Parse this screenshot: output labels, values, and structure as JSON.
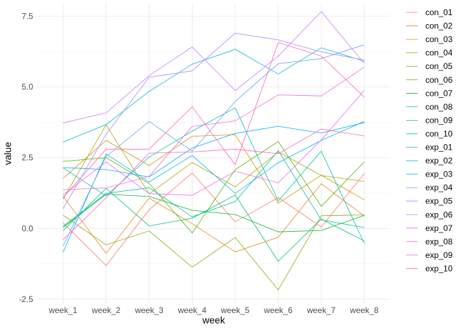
{
  "chart_data": {
    "type": "line",
    "title": "",
    "xlabel": "week",
    "ylabel": "value",
    "categories": [
      "week_1",
      "week_2",
      "week_3",
      "week_4",
      "week_5",
      "week_6",
      "week_7",
      "week_8"
    ],
    "ylim": [
      -2.65,
      7.95
    ],
    "y_ticks": [
      -2.5,
      0.0,
      2.5,
      5.0,
      7.5
    ],
    "y_tick_labels": [
      "-2.5",
      "0.0",
      "2.5",
      "5.0",
      "7.5"
    ],
    "grid": true,
    "legend_position": "right",
    "series": [
      {
        "name": "con_01",
        "color": "#F8766D",
        "values": [
          0.2,
          -1.31,
          0.66,
          1.96,
          0.23,
          1.09,
          0.05,
          1.94
        ]
      },
      {
        "name": "con_02",
        "color": "#E7851E",
        "values": [
          1.13,
          -0.88,
          1.07,
          0.17,
          -0.83,
          -0.31,
          1.58,
          0.44
        ]
      },
      {
        "name": "con_03",
        "color": "#D09400",
        "values": [
          1.77,
          3.11,
          2.22,
          3.26,
          3.31,
          0.89,
          1.88,
          1.01
        ]
      },
      {
        "name": "con_04",
        "color": "#B2A100",
        "values": [
          1.04,
          3.66,
          1.22,
          2.33,
          1.47,
          2.7,
          1.87,
          1.66
        ]
      },
      {
        "name": "con_05",
        "color": "#8BAB00",
        "values": [
          0.47,
          -0.58,
          -0.09,
          -1.37,
          -0.32,
          -2.17,
          0.45,
          0.48
        ]
      },
      {
        "name": "con_06",
        "color": "#55B300",
        "values": [
          2.37,
          2.5,
          1.59,
          -0.16,
          2.08,
          3.07,
          0.78,
          2.35
        ]
      },
      {
        "name": "con_07",
        "color": "#00B81F",
        "values": [
          0.03,
          1.21,
          1.13,
          0.64,
          0.49,
          -0.12,
          -0.07,
          0.46
        ]
      },
      {
        "name": "con_08",
        "color": "#00BE70",
        "values": [
          -0.08,
          1.42,
          0.09,
          0.36,
          1.18,
          -1.16,
          0.33,
          -0.44
        ]
      },
      {
        "name": "con_09",
        "color": "#00C097",
        "values": [
          0.08,
          1.24,
          1.44,
          0.41,
          0.95,
          2.75,
          0.3,
          0.03
        ]
      },
      {
        "name": "con_10",
        "color": "#00BFB4",
        "values": [
          2.14,
          1.15,
          2.52,
          3.44,
          4.26,
          0.97,
          2.73,
          -0.53
        ]
      },
      {
        "name": "exp_01",
        "color": "#00BCD1",
        "values": [
          3.05,
          3.67,
          4.84,
          5.8,
          6.33,
          5.46,
          6.38,
          5.91
        ]
      },
      {
        "name": "exp_02",
        "color": "#00B6EB",
        "values": [
          -0.84,
          2.63,
          1.64,
          2.58,
          1.24,
          2.32,
          3.11,
          3.78
        ]
      },
      {
        "name": "exp_03",
        "color": "#00A9FF",
        "values": [
          2.15,
          2.08,
          1.82,
          2.84,
          3.36,
          3.61,
          3.37,
          3.74
        ]
      },
      {
        "name": "exp_04",
        "color": "#619CFF",
        "values": [
          -0.62,
          2.54,
          3.78,
          2.73,
          4.49,
          5.82,
          6.0,
          6.49
        ]
      },
      {
        "name": "exp_05",
        "color": "#9F8CFF",
        "values": [
          0.7,
          3.33,
          5.34,
          5.57,
          6.9,
          6.66,
          6.24,
          5.95
        ]
      },
      {
        "name": "exp_06",
        "color": "#C77CFF",
        "values": [
          3.73,
          4.08,
          5.4,
          6.41,
          4.87,
          6.09,
          7.66,
          5.83
        ]
      },
      {
        "name": "exp_07",
        "color": "#E76BF3",
        "values": [
          1.18,
          2.35,
          1.23,
          1.17,
          2.02,
          1.61,
          3.13,
          4.88
        ]
      },
      {
        "name": "exp_08",
        "color": "#F763E0",
        "values": [
          1.37,
          1.43,
          1.84,
          3.6,
          3.8,
          4.72,
          4.68,
          5.7
        ]
      },
      {
        "name": "exp_09",
        "color": "#FF61C9",
        "values": [
          -0.4,
          1.08,
          2.66,
          2.7,
          2.8,
          2.64,
          3.51,
          3.27
        ]
      },
      {
        "name": "exp_10",
        "color": "#FF65AE",
        "values": [
          1.09,
          2.8,
          2.8,
          4.3,
          2.25,
          6.57,
          6.09,
          4.64
        ]
      }
    ]
  }
}
